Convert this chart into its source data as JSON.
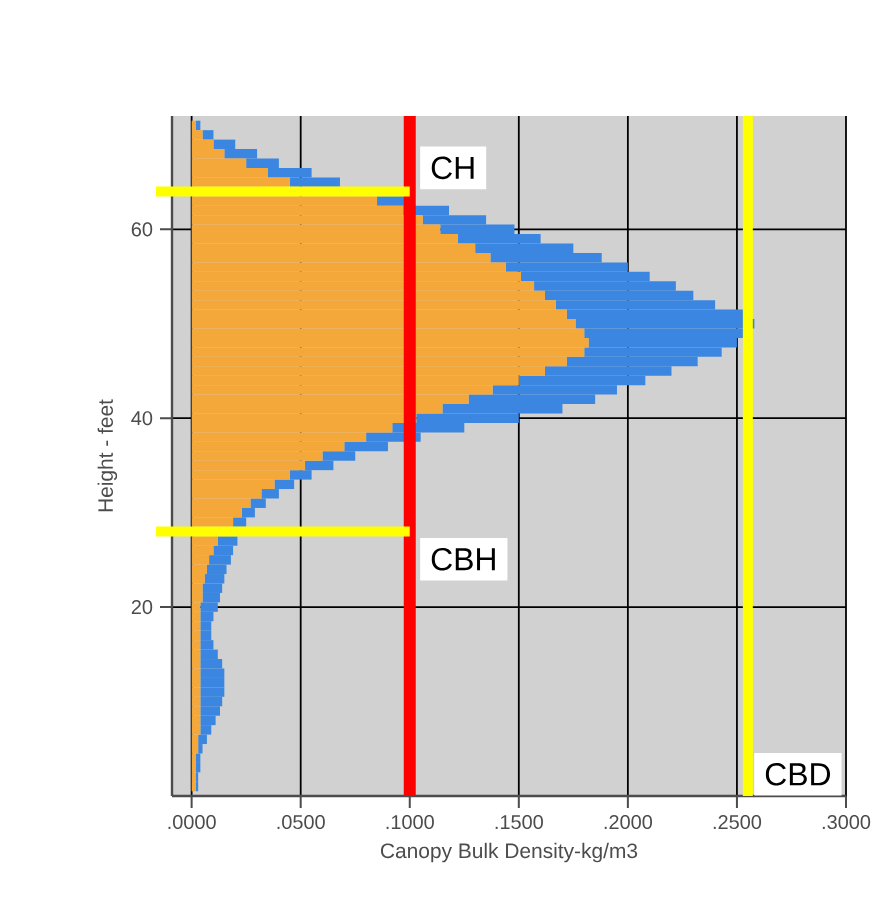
{
  "chart_data": {
    "type": "bar",
    "orientation": "horizontal",
    "stacked": true,
    "xlabel": "Canopy Bulk Density-kg/m3",
    "ylabel": "Height - feet",
    "x": [
      1,
      2,
      3,
      4,
      5,
      6,
      7,
      8,
      9,
      10,
      11,
      12,
      13,
      14,
      15,
      16,
      17,
      18,
      19,
      20,
      21,
      22,
      23,
      24,
      25,
      26,
      27,
      28,
      29,
      30,
      31,
      32,
      33,
      34,
      35,
      36,
      37,
      38,
      39,
      40,
      41,
      42,
      43,
      44,
      45,
      46,
      47,
      48,
      49,
      50,
      51,
      52,
      53,
      54,
      55,
      56,
      57,
      58,
      59,
      60,
      61,
      62,
      63,
      64,
      65,
      66,
      67,
      68,
      69,
      70,
      71
    ],
    "series": [
      {
        "color": "#f5a83a",
        "values": [
          0.002,
          0.002,
          0.002,
          0.002,
          0.003,
          0.003,
          0.004,
          0.004,
          0.004,
          0.004,
          0.004,
          0.004,
          0.004,
          0.004,
          0.004,
          0.004,
          0.004,
          0.004,
          0.004,
          0.004,
          0.005,
          0.005,
          0.006,
          0.007,
          0.008,
          0.01,
          0.012,
          null,
          0.019,
          0.023,
          0.027,
          0.032,
          0.038,
          0.045,
          0.052,
          0.06,
          0.07,
          0.08,
          0.092,
          0.103,
          0.115,
          0.127,
          0.138,
          0.15,
          0.162,
          0.172,
          0.18,
          0.182,
          0.18,
          0.176,
          0.172,
          0.167,
          0.162,
          0.157,
          0.151,
          0.144,
          0.137,
          0.13,
          0.122,
          0.114,
          0.106,
          0.097,
          0.085,
          null,
          0.045,
          0.035,
          0.025,
          0.015,
          0.01,
          0.005,
          0.002
        ]
      },
      {
        "color": "#3a86e0",
        "values": [
          0.001,
          0.001,
          0.002,
          0.002,
          0.002,
          0.004,
          0.005,
          0.007,
          0.009,
          0.01,
          0.011,
          0.011,
          0.011,
          0.01,
          0.008,
          0.006,
          0.005,
          0.005,
          0.006,
          0.008,
          0.008,
          0.009,
          0.009,
          0.009,
          0.01,
          0.009,
          0.009,
          null,
          0.006,
          0.006,
          0.007,
          0.008,
          0.009,
          0.01,
          0.013,
          0.015,
          0.02,
          0.025,
          0.033,
          0.047,
          0.055,
          0.058,
          0.057,
          0.058,
          0.058,
          0.06,
          0.063,
          0.068,
          0.075,
          0.082,
          0.083,
          0.073,
          0.068,
          0.065,
          0.059,
          0.056,
          0.051,
          0.045,
          0.038,
          0.034,
          0.029,
          0.021,
          0.015,
          null,
          0.023,
          0.02,
          0.015,
          0.015,
          0.01,
          0.005,
          0.002
        ]
      }
    ],
    "xlim": [
      -0.009,
      0.3
    ],
    "xticks": [
      {
        "value": 0,
        "label": ".0000"
      },
      {
        "value": 0.05,
        "label": ".0500"
      },
      {
        "value": 0.1,
        "label": ".1000"
      },
      {
        "value": 0.15,
        "label": ".1500"
      },
      {
        "value": 0.2,
        "label": ".2000"
      },
      {
        "value": 0.25,
        "label": ".2500"
      },
      {
        "value": 0.3,
        "label": ".3000"
      }
    ],
    "ylim": [
      0,
      72
    ],
    "yticks": [
      20,
      40,
      60
    ],
    "grid": true,
    "ref_lines": [
      {
        "axis": "x",
        "value": 0.1,
        "color": "#ff0000"
      },
      {
        "axis": "y",
        "value": 64,
        "label": "CH",
        "color": "#ffff00"
      },
      {
        "axis": "y",
        "value": 28,
        "label": "CBH",
        "color": "#ffff00"
      },
      {
        "axis": "x",
        "value": 0.255,
        "label": "CBD",
        "color": "#ffff00"
      }
    ]
  }
}
